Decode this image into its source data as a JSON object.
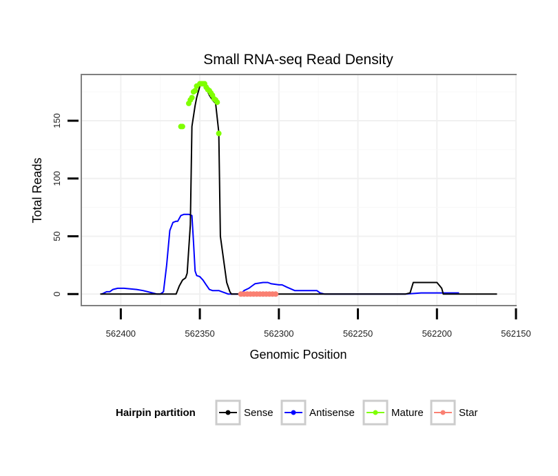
{
  "chart_data": {
    "type": "line",
    "title": "Small RNA-seq Read Density",
    "xlabel": "Genomic Position",
    "ylabel": "Total Reads",
    "x_reversed": true,
    "xlim": [
      562425,
      562150
    ],
    "ylim": [
      -10,
      190
    ],
    "xticks": [
      562400,
      562350,
      562300,
      562250,
      562200,
      562150
    ],
    "xtick_labels": [
      "562400",
      "562350",
      "562300",
      "562250",
      "562200",
      "562150"
    ],
    "yticks": [
      0,
      50,
      100,
      150
    ],
    "ytick_labels": [
      "0",
      "50",
      "100",
      "150"
    ],
    "grid": true,
    "legend": {
      "title": "Hairpin partition",
      "placement": "bottom",
      "entries": [
        {
          "label": "Sense",
          "color": "#000000"
        },
        {
          "label": "Antisense",
          "color": "#0000ff"
        },
        {
          "label": "Mature",
          "color": "#7fff00"
        },
        {
          "label": "Star",
          "color": "#fa8072"
        }
      ]
    },
    "series": [
      {
        "name": "Sense",
        "style": "line",
        "color": "#000000",
        "x": [
          562413,
          562365,
          562363,
          562361,
          562359,
          562358,
          562356,
          562355,
          562353,
          562352,
          562351,
          562350,
          562349,
          562348,
          562347,
          562346,
          562344,
          562342,
          562340,
          562338,
          562337,
          562335,
          562333,
          562331,
          562330,
          562328,
          562220,
          562217,
          562215,
          562200,
          562197,
          562196,
          562162
        ],
        "y": [
          0,
          0,
          7,
          12,
          14,
          18,
          60,
          145,
          163,
          170,
          175,
          180,
          182,
          182,
          181,
          178,
          172,
          168,
          165,
          140,
          50,
          30,
          10,
          2,
          0,
          0,
          0,
          1,
          10,
          10,
          5,
          0,
          0
        ]
      },
      {
        "name": "Antisense",
        "style": "line",
        "color": "#0000ff",
        "x": [
          562412,
          562409,
          562407,
          562405,
          562402,
          562398,
          562390,
          562386,
          562383,
          562380,
          562377,
          562375,
          562373,
          562371,
          562369,
          562367,
          562365,
          562364,
          562362,
          562360,
          562359,
          562357,
          562355,
          562354,
          562353,
          562352,
          562350,
          562348,
          562346,
          562344,
          562342,
          562340,
          562338,
          562336,
          562334,
          562332,
          562330,
          562324,
          562322,
          562319,
          562317,
          562315,
          562310,
          562307,
          562305,
          562300,
          562298,
          562295,
          562290,
          562285,
          562276,
          562274,
          562271,
          562265,
          562262,
          562220,
          562210,
          562202,
          562198,
          562186
        ],
        "y": [
          0,
          2,
          2,
          4,
          5,
          5,
          4,
          3,
          2,
          1,
          0,
          0,
          2,
          25,
          55,
          62,
          63,
          63,
          68,
          69,
          69,
          69,
          68,
          45,
          20,
          16,
          15,
          12,
          8,
          4,
          3,
          3,
          3,
          2,
          1,
          0,
          0,
          0,
          3,
          5,
          7,
          9,
          10,
          10,
          9,
          8,
          8,
          6,
          3,
          3,
          3,
          1,
          0,
          0,
          0,
          0,
          1,
          1,
          1,
          1
        ]
      },
      {
        "name": "Mature",
        "style": "points",
        "color": "#7fff00",
        "x": [
          562362,
          562361,
          562357,
          562356,
          562355,
          562354,
          562353,
          562352,
          562350,
          562349,
          562348,
          562347,
          562346,
          562345,
          562344,
          562343,
          562342,
          562341,
          562340,
          562339,
          562338
        ],
        "y": [
          145,
          145,
          165,
          168,
          170,
          175,
          176,
          180,
          182,
          182,
          182,
          182,
          179,
          177,
          176,
          174,
          172,
          169,
          168,
          166,
          139
        ]
      },
      {
        "name": "Star",
        "style": "points",
        "color": "#fa8072",
        "x": [
          562324,
          562322,
          562320,
          562318,
          562316,
          562314,
          562312,
          562310,
          562308,
          562306,
          562304,
          562302
        ],
        "y": [
          0,
          0,
          0,
          0,
          0,
          0,
          0,
          0,
          0,
          0,
          0,
          0
        ]
      }
    ]
  }
}
